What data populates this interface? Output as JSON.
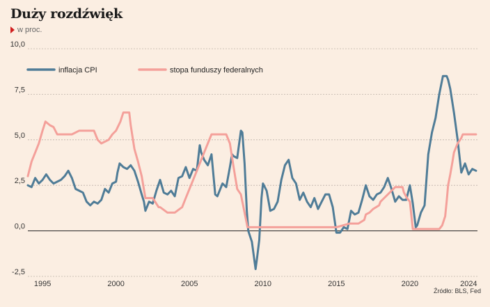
{
  "header": {
    "title": "Duży rozdźwięk",
    "subtitle": "w proc.",
    "source": "Źródło: BLS, Fed"
  },
  "chart_data": {
    "type": "line",
    "title": "Duży rozdźwięk",
    "subtitle": "w proc.",
    "xlabel": "",
    "ylabel": "",
    "xlim": [
      1994.0,
      2024.6
    ],
    "ylim": [
      -2.5,
      10.0
    ],
    "x_ticks": [
      "1995",
      "2000",
      "2005",
      "2010",
      "2015",
      "2020",
      "2024"
    ],
    "y_ticks": [
      "-2,5",
      "0,0",
      "2,5",
      "5,0",
      "7,5",
      "10,0"
    ],
    "grid": "horizontal dashed",
    "legend_position": "top-left",
    "series": [
      {
        "name": "inflacja CPI",
        "color": "#4f7c97",
        "x": [
          1994.0,
          1994.25,
          1994.5,
          1994.75,
          1995.0,
          1995.25,
          1995.5,
          1995.75,
          1996.0,
          1996.25,
          1996.5,
          1996.75,
          1997.0,
          1997.25,
          1997.5,
          1997.75,
          1998.0,
          1998.25,
          1998.5,
          1998.75,
          1999.0,
          1999.25,
          1999.5,
          1999.75,
          2000.0,
          2000.1,
          2000.25,
          2000.5,
          2000.75,
          2001.0,
          2001.25,
          2001.5,
          2001.75,
          2001.9,
          2002.0,
          2002.25,
          2002.5,
          2002.75,
          2003.0,
          2003.25,
          2003.5,
          2003.75,
          2004.0,
          2004.25,
          2004.5,
          2004.75,
          2005.0,
          2005.25,
          2005.5,
          2005.7,
          2005.8,
          2006.0,
          2006.25,
          2006.5,
          2006.75,
          2006.9,
          2007.0,
          2007.25,
          2007.5,
          2007.75,
          2007.9,
          2008.0,
          2008.25,
          2008.5,
          2008.6,
          2008.75,
          2008.9,
          2009.0,
          2009.25,
          2009.5,
          2009.6,
          2009.75,
          2009.9,
          2010.0,
          2010.25,
          2010.5,
          2010.75,
          2011.0,
          2011.25,
          2011.5,
          2011.75,
          2012.0,
          2012.25,
          2012.5,
          2012.75,
          2013.0,
          2013.25,
          2013.5,
          2013.75,
          2014.0,
          2014.25,
          2014.5,
          2014.75,
          2015.0,
          2015.25,
          2015.5,
          2015.75,
          2016.0,
          2016.25,
          2016.5,
          2016.75,
          2017.0,
          2017.25,
          2017.5,
          2017.75,
          2018.0,
          2018.25,
          2018.5,
          2018.75,
          2019.0,
          2019.25,
          2019.5,
          2019.75,
          2020.0,
          2020.2,
          2020.4,
          2020.5,
          2020.75,
          2021.0,
          2021.25,
          2021.5,
          2021.75,
          2022.0,
          2022.25,
          2022.5,
          2022.6,
          2022.75,
          2023.0,
          2023.25,
          2023.5,
          2023.75,
          2024.0,
          2024.25,
          2024.5
        ],
        "values": [
          2.5,
          2.4,
          2.9,
          2.6,
          2.8,
          3.1,
          2.8,
          2.6,
          2.7,
          2.8,
          3.0,
          3.3,
          2.9,
          2.3,
          2.2,
          2.1,
          1.6,
          1.4,
          1.6,
          1.5,
          1.7,
          2.3,
          2.1,
          2.6,
          2.7,
          3.2,
          3.7,
          3.5,
          3.4,
          3.6,
          3.3,
          2.7,
          2.0,
          1.6,
          1.1,
          1.6,
          1.5,
          2.2,
          2.8,
          2.1,
          2.0,
          2.2,
          1.9,
          2.9,
          3.0,
          3.5,
          2.9,
          3.4,
          3.3,
          4.7,
          4.3,
          3.9,
          3.6,
          4.2,
          2.0,
          1.9,
          2.1,
          2.6,
          2.4,
          3.5,
          4.2,
          4.1,
          4.0,
          5.5,
          5.4,
          3.7,
          1.1,
          0.0,
          -0.6,
          -2.1,
          -1.5,
          -0.5,
          1.8,
          2.6,
          2.2,
          1.1,
          1.2,
          1.6,
          2.8,
          3.6,
          3.9,
          2.9,
          2.6,
          1.7,
          2.1,
          1.6,
          1.3,
          1.8,
          1.2,
          1.6,
          2.0,
          2.0,
          1.3,
          -0.1,
          -0.1,
          0.2,
          0.1,
          1.1,
          0.9,
          1.0,
          1.7,
          2.5,
          1.9,
          1.7,
          2.0,
          2.1,
          2.4,
          2.9,
          2.3,
          1.6,
          1.9,
          1.7,
          1.7,
          2.5,
          1.5,
          0.2,
          0.3,
          1.0,
          1.4,
          4.2,
          5.4,
          6.2,
          7.5,
          8.5,
          8.5,
          8.3,
          7.8,
          6.5,
          5.0,
          3.2,
          3.7,
          3.1,
          3.4,
          3.3
        ]
      },
      {
        "name": "stopa funduszy federalnych",
        "color": "#f4a09a",
        "x": [
          1994.0,
          1994.25,
          1994.5,
          1994.75,
          1995.0,
          1995.2,
          1995.5,
          1995.75,
          1996.0,
          1996.5,
          1997.0,
          1997.5,
          1998.0,
          1998.5,
          1998.75,
          1999.0,
          1999.5,
          1999.75,
          2000.0,
          2000.3,
          2000.5,
          2000.9,
          2001.0,
          2001.25,
          2001.5,
          2001.75,
          2002.0,
          2002.5,
          2002.9,
          2003.0,
          2003.5,
          2004.0,
          2004.5,
          2004.75,
          2005.0,
          2005.25,
          2005.5,
          2005.75,
          2006.0,
          2006.25,
          2006.5,
          2007.0,
          2007.5,
          2007.75,
          2008.0,
          2008.25,
          2008.5,
          2008.75,
          2008.95,
          2009.0,
          2010.0,
          2012.0,
          2014.0,
          2015.0,
          2015.9,
          2016.5,
          2016.9,
          2017.0,
          2017.25,
          2017.5,
          2017.9,
          2018.0,
          2018.25,
          2018.5,
          2018.75,
          2019.0,
          2019.5,
          2019.6,
          2019.8,
          2020.0,
          2020.2,
          2020.3,
          2021.0,
          2022.0,
          2022.2,
          2022.4,
          2022.5,
          2022.6,
          2022.75,
          2022.9,
          2023.0,
          2023.25,
          2023.5,
          2023.6,
          2024.0,
          2024.5
        ],
        "values": [
          3.0,
          3.8,
          4.3,
          4.8,
          5.5,
          6.0,
          5.8,
          5.7,
          5.3,
          5.3,
          5.3,
          5.5,
          5.5,
          5.5,
          5.0,
          4.8,
          5.0,
          5.3,
          5.5,
          6.0,
          6.5,
          6.5,
          5.8,
          4.5,
          3.8,
          3.0,
          1.8,
          1.8,
          1.3,
          1.3,
          1.0,
          1.0,
          1.3,
          1.8,
          2.3,
          2.8,
          3.3,
          3.8,
          4.3,
          4.8,
          5.3,
          5.3,
          5.3,
          4.8,
          3.5,
          2.3,
          2.0,
          1.0,
          0.2,
          0.2,
          0.2,
          0.2,
          0.2,
          0.2,
          0.4,
          0.4,
          0.6,
          0.9,
          1.0,
          1.2,
          1.4,
          1.6,
          1.8,
          2.0,
          2.2,
          2.4,
          2.4,
          2.1,
          1.8,
          1.6,
          0.1,
          0.1,
          0.1,
          0.1,
          0.3,
          0.8,
          1.6,
          2.5,
          3.1,
          3.8,
          4.3,
          4.8,
          5.1,
          5.3,
          5.3,
          5.3
        ]
      }
    ]
  }
}
